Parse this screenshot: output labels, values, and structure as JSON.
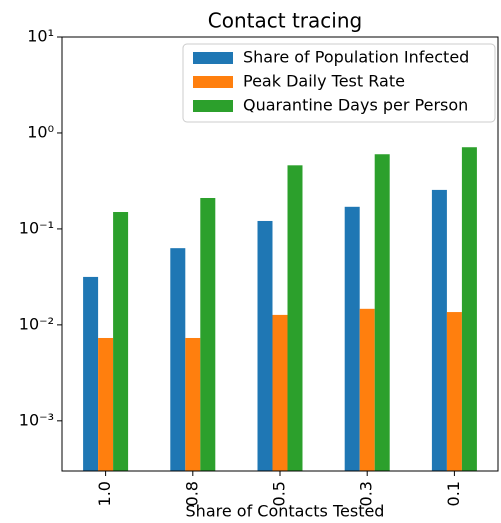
{
  "chart_data": {
    "type": "bar",
    "title": "Contact tracing",
    "xlabel": "Share of Contacts Tested",
    "categories": [
      "1.0",
      "0.8",
      "0.5",
      "0.3",
      "0.1"
    ],
    "series": [
      {
        "name": "Share of Population Infected",
        "color": "#1f77b4",
        "values": [
          0.0316,
          0.063,
          0.121,
          0.17,
          0.255
        ]
      },
      {
        "name": "Peak Daily Test Rate",
        "color": "#ff7f0e",
        "values": [
          0.0073,
          0.0073,
          0.0127,
          0.0147,
          0.0136
        ]
      },
      {
        "name": "Quarantine Days per Person",
        "color": "#2ca02c",
        "values": [
          0.15,
          0.21,
          0.46,
          0.6,
          0.71
        ]
      }
    ],
    "ylim": [
      0.0003,
      10
    ],
    "yticks": [
      {
        "value": 0.001,
        "label": "10⁻³"
      },
      {
        "value": 0.01,
        "label": "10⁻²"
      },
      {
        "value": 0.1,
        "label": "10⁻¹"
      },
      {
        "value": 1,
        "label": "10⁰"
      },
      {
        "value": 10,
        "label": "10¹"
      }
    ],
    "log_scale": true,
    "legend": "upper right"
  }
}
